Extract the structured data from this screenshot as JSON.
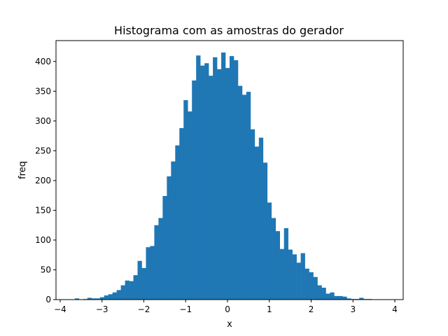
{
  "chart_data": {
    "type": "bar",
    "title": "Histograma com as amostras do gerador",
    "xlabel": "x",
    "ylabel": "freq",
    "xlim": [
      -4.1,
      4.2
    ],
    "ylim": [
      0,
      435
    ],
    "xticks": [
      -4,
      -3,
      -2,
      -1,
      0,
      1,
      2,
      3,
      4
    ],
    "xtick_labels": [
      "−4",
      "−3",
      "−2",
      "−1",
      "0",
      "1",
      "2",
      "3",
      "4"
    ],
    "yticks": [
      0,
      50,
      100,
      150,
      200,
      250,
      300,
      350,
      400
    ],
    "ytick_labels": [
      "0",
      "50",
      "100",
      "150",
      "200",
      "250",
      "300",
      "350",
      "400"
    ],
    "grid": false,
    "color": "#1f77b4",
    "bin_start": -3.85,
    "bin_width": 0.1,
    "values": [
      0,
      0,
      2,
      0,
      1,
      3,
      2,
      2,
      4,
      7,
      9,
      12,
      16,
      24,
      32,
      31,
      41,
      65,
      53,
      88,
      90,
      125,
      137,
      174,
      207,
      232,
      259,
      288,
      335,
      316,
      368,
      410,
      393,
      397,
      376,
      407,
      387,
      415,
      389,
      409,
      402,
      359,
      344,
      349,
      286,
      257,
      272,
      230,
      163,
      137,
      115,
      85,
      120,
      84,
      76,
      62,
      78,
      52,
      46,
      38,
      24,
      20,
      10,
      12,
      6,
      6,
      5,
      2,
      1,
      1,
      3,
      1,
      1,
      0,
      0,
      0,
      0
    ]
  }
}
